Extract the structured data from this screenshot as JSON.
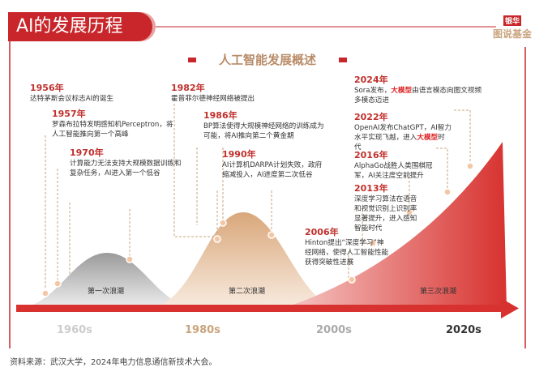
{
  "title": "AI的发展历程",
  "logo": {
    "top": "银华",
    "bottom": "图说基金"
  },
  "subtitle": "人工智能发展概述",
  "events": [
    {
      "year": "1956年",
      "text": "达特茅斯会议标志AI的诞生"
    },
    {
      "year": "1957年",
      "text": "罗森布拉特发明感知机Perceptron，将人工智能推向第一个高峰"
    },
    {
      "year": "1970年",
      "text": "计算能力无法支持大规模数据训练和复杂任务，AI进入第一个低谷"
    },
    {
      "year": "1982年",
      "text": "霍普菲尔德神经网络被提出"
    },
    {
      "year": "1986年",
      "text": "BP算法使得大规模神经网络的训练成为可能，将AI推向第二个黄金期"
    },
    {
      "year": "1990年",
      "text": "AI计算机DARPA计划失败，政府缩减投入，AI进度第二次低谷"
    },
    {
      "year": "2006年",
      "text": "Hinton提出“深度学习”神经网络，使得人工智能性能获得突破性进展"
    },
    {
      "year": "2013年",
      "text": "深度学习算法在语音和视觉识别上识别率显著提升，进入感知智能时代"
    },
    {
      "year": "2016年",
      "text": "AlphaGo战胜人类围棋冠军，AI关注度空前提升"
    },
    {
      "year": "2022年",
      "text_a": "OpenAI发布ChatGPT，AI智力水平实现飞越，进入",
      "highlight": "大模型",
      "text_b": "时代"
    },
    {
      "year": "2024年",
      "text_a": "Sora发布，",
      "highlight": "大模型",
      "text_b": "由语言模态向图文视频多模态迈进"
    }
  ],
  "waves": [
    "第一次浪潮",
    "第二次浪潮",
    "第三次浪潮"
  ],
  "decades": [
    "1960s",
    "1980s",
    "2000s",
    "2020s"
  ],
  "source": "资料来源：武汉大学，2024年电力信息通信新技术大会。",
  "colors": {
    "accent": "#c8262a",
    "beige": "#c9a47e",
    "gray": "#b8b8b8"
  }
}
